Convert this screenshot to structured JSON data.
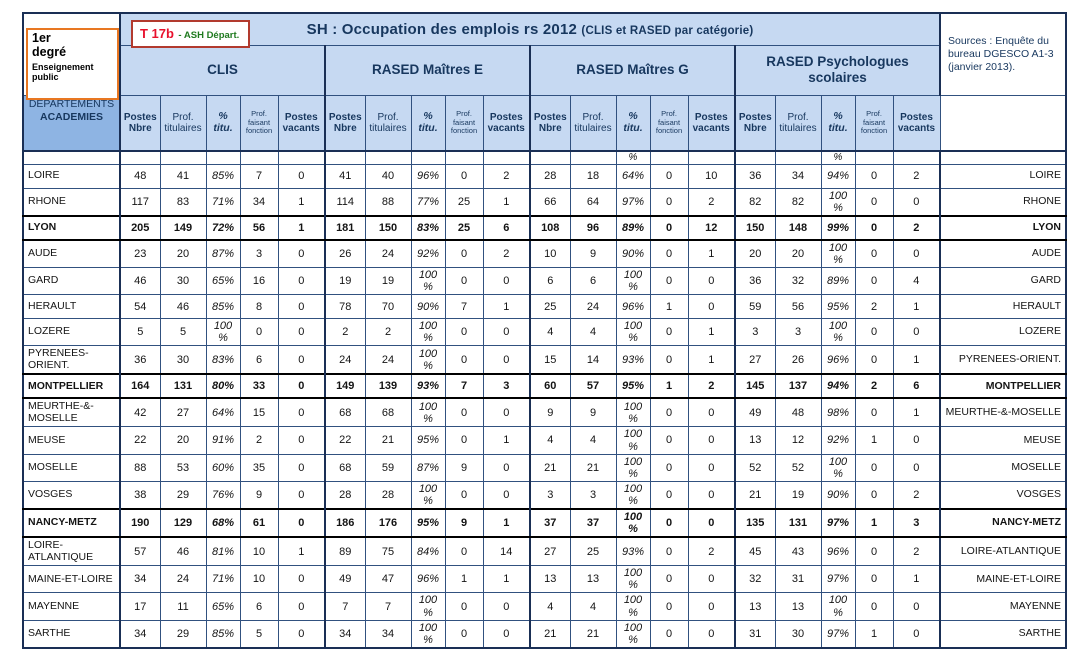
{
  "corner_box": {
    "title": "1er degré",
    "subtitle": "Enseignement public"
  },
  "tag_box": {
    "code": "T 17b",
    "label": "- ASH Départ."
  },
  "title_bar": {
    "main": "SH : Occupation des emplois rs 2012",
    "suffix": "(CLIS et RASED par catégorie)"
  },
  "sources": "Sources : Enquête du bureau DGESCO A1-3 (janvier 2013).",
  "table": {
    "row_header": {
      "line1": "DEPARTEMENTS",
      "line2": "ACADEMIES"
    },
    "groups": [
      "CLIS",
      "RASED Maîtres E",
      "RASED Maîtres G",
      "RASED Psychologues scolaires"
    ],
    "columns": [
      "Postes Nbre",
      "Prof. titulaires",
      "% titu.",
      "Prof. faisant fonction",
      "Postes vacants"
    ],
    "rows": [
      {
        "name": "",
        "partial": true,
        "clis": [
          "",
          "",
          "",
          "",
          ""
        ],
        "rased_e": [
          "",
          "",
          "",
          "",
          ""
        ],
        "rased_g": [
          "",
          "",
          "%",
          "",
          ""
        ],
        "rased_psy": [
          "",
          "",
          "%",
          "",
          ""
        ]
      },
      {
        "name": "LOIRE",
        "clis": [
          "48",
          "41",
          "85%",
          "7",
          "0"
        ],
        "rased_e": [
          "41",
          "40",
          "96%",
          "0",
          "2"
        ],
        "rased_g": [
          "28",
          "18",
          "64%",
          "0",
          "10"
        ],
        "rased_psy": [
          "36",
          "34",
          "94%",
          "0",
          "2"
        ]
      },
      {
        "name": "RHONE",
        "clis": [
          "117",
          "83",
          "71%",
          "34",
          "1"
        ],
        "rased_e": [
          "114",
          "88",
          "77%",
          "25",
          "1"
        ],
        "rased_g": [
          "66",
          "64",
          "97%",
          "0",
          "2"
        ],
        "rased_psy": [
          "82",
          "82",
          "100 %",
          "0",
          "0"
        ]
      },
      {
        "name": "LYON",
        "bold": true,
        "clis": [
          "205",
          "149",
          "72%",
          "56",
          "1"
        ],
        "rased_e": [
          "181",
          "150",
          "83%",
          "25",
          "6"
        ],
        "rased_g": [
          "108",
          "96",
          "89%",
          "0",
          "12"
        ],
        "rased_psy": [
          "150",
          "148",
          "99%",
          "0",
          "2"
        ]
      },
      {
        "name": "AUDE",
        "clis": [
          "23",
          "20",
          "87%",
          "3",
          "0"
        ],
        "rased_e": [
          "26",
          "24",
          "92%",
          "0",
          "2"
        ],
        "rased_g": [
          "10",
          "9",
          "90%",
          "0",
          "1"
        ],
        "rased_psy": [
          "20",
          "20",
          "100 %",
          "0",
          "0"
        ]
      },
      {
        "name": "GARD",
        "clis": [
          "46",
          "30",
          "65%",
          "16",
          "0"
        ],
        "rased_e": [
          "19",
          "19",
          "100 %",
          "0",
          "0"
        ],
        "rased_g": [
          "6",
          "6",
          "100 %",
          "0",
          "0"
        ],
        "rased_psy": [
          "36",
          "32",
          "89%",
          "0",
          "4"
        ]
      },
      {
        "name": "HERAULT",
        "clis": [
          "54",
          "46",
          "85%",
          "8",
          "0"
        ],
        "rased_e": [
          "78",
          "70",
          "90%",
          "7",
          "1"
        ],
        "rased_g": [
          "25",
          "24",
          "96%",
          "1",
          "0"
        ],
        "rased_psy": [
          "59",
          "56",
          "95%",
          "2",
          "1"
        ]
      },
      {
        "name": "LOZERE",
        "clis": [
          "5",
          "5",
          "100 %",
          "0",
          "0"
        ],
        "rased_e": [
          "2",
          "2",
          "100 %",
          "0",
          "0"
        ],
        "rased_g": [
          "4",
          "4",
          "100 %",
          "0",
          "1"
        ],
        "rased_psy": [
          "3",
          "3",
          "100 %",
          "0",
          "0"
        ]
      },
      {
        "name": "PYRENEES-ORIENT.",
        "clis": [
          "36",
          "30",
          "83%",
          "6",
          "0"
        ],
        "rased_e": [
          "24",
          "24",
          "100 %",
          "0",
          "0"
        ],
        "rased_g": [
          "15",
          "14",
          "93%",
          "0",
          "1"
        ],
        "rased_psy": [
          "27",
          "26",
          "96%",
          "0",
          "1"
        ]
      },
      {
        "name": "MONTPELLIER",
        "bold": true,
        "clis": [
          "164",
          "131",
          "80%",
          "33",
          "0"
        ],
        "rased_e": [
          "149",
          "139",
          "93%",
          "7",
          "3"
        ],
        "rased_g": [
          "60",
          "57",
          "95%",
          "1",
          "2"
        ],
        "rased_psy": [
          "145",
          "137",
          "94%",
          "2",
          "6"
        ]
      },
      {
        "name": "MEURTHE-&-MOSELLE",
        "clis": [
          "42",
          "27",
          "64%",
          "15",
          "0"
        ],
        "rased_e": [
          "68",
          "68",
          "100 %",
          "0",
          "0"
        ],
        "rased_g": [
          "9",
          "9",
          "100 %",
          "0",
          "0"
        ],
        "rased_psy": [
          "49",
          "48",
          "98%",
          "0",
          "1"
        ]
      },
      {
        "name": "MEUSE",
        "clis": [
          "22",
          "20",
          "91%",
          "2",
          "0"
        ],
        "rased_e": [
          "22",
          "21",
          "95%",
          "0",
          "1"
        ],
        "rased_g": [
          "4",
          "4",
          "100 %",
          "0",
          "0"
        ],
        "rased_psy": [
          "13",
          "12",
          "92%",
          "1",
          "0"
        ]
      },
      {
        "name": "MOSELLE",
        "clis": [
          "88",
          "53",
          "60%",
          "35",
          "0"
        ],
        "rased_e": [
          "68",
          "59",
          "87%",
          "9",
          "0"
        ],
        "rased_g": [
          "21",
          "21",
          "100 %",
          "0",
          "0"
        ],
        "rased_psy": [
          "52",
          "52",
          "100 %",
          "0",
          "0"
        ]
      },
      {
        "name": "VOSGES",
        "clis": [
          "38",
          "29",
          "76%",
          "9",
          "0"
        ],
        "rased_e": [
          "28",
          "28",
          "100 %",
          "0",
          "0"
        ],
        "rased_g": [
          "3",
          "3",
          "100 %",
          "0",
          "0"
        ],
        "rased_psy": [
          "21",
          "19",
          "90%",
          "0",
          "2"
        ]
      },
      {
        "name": "NANCY-METZ",
        "bold": true,
        "clis": [
          "190",
          "129",
          "68%",
          "61",
          "0"
        ],
        "rased_e": [
          "186",
          "176",
          "95%",
          "9",
          "1"
        ],
        "rased_g": [
          "37",
          "37",
          "100 %",
          "0",
          "0"
        ],
        "rased_psy": [
          "135",
          "131",
          "97%",
          "1",
          "3"
        ]
      },
      {
        "name": "LOIRE-ATLANTIQUE",
        "clis": [
          "57",
          "46",
          "81%",
          "10",
          "1"
        ],
        "rased_e": [
          "89",
          "75",
          "84%",
          "0",
          "14"
        ],
        "rased_g": [
          "27",
          "25",
          "93%",
          "0",
          "2"
        ],
        "rased_psy": [
          "45",
          "43",
          "96%",
          "0",
          "2"
        ]
      },
      {
        "name": "MAINE-ET-LOIRE",
        "clis": [
          "34",
          "24",
          "71%",
          "10",
          "0"
        ],
        "rased_e": [
          "49",
          "47",
          "96%",
          "1",
          "1"
        ],
        "rased_g": [
          "13",
          "13",
          "100 %",
          "0",
          "0"
        ],
        "rased_psy": [
          "32",
          "31",
          "97%",
          "0",
          "1"
        ]
      },
      {
        "name": "MAYENNE",
        "clis": [
          "17",
          "11",
          "65%",
          "6",
          "0"
        ],
        "rased_e": [
          "7",
          "7",
          "100 %",
          "0",
          "0"
        ],
        "rased_g": [
          "4",
          "4",
          "100 %",
          "0",
          "0"
        ],
        "rased_psy": [
          "13",
          "13",
          "100 %",
          "0",
          "0"
        ]
      },
      {
        "name": "SARTHE",
        "clis": [
          "34",
          "29",
          "85%",
          "5",
          "0"
        ],
        "rased_e": [
          "34",
          "34",
          "100 %",
          "0",
          "0"
        ],
        "rased_g": [
          "21",
          "21",
          "100 %",
          "0",
          "0"
        ],
        "rased_psy": [
          "31",
          "30",
          "97%",
          "1",
          "0"
        ]
      }
    ]
  },
  "colors": {
    "header_blue": "#c6d9f2",
    "dept_blue": "#8eb4e3",
    "navy_text": "#17375e",
    "border_navy": "#31517f",
    "tag_red": "#e8112d",
    "tag_green": "#1f7a1f",
    "corner_orange": "#e87722"
  }
}
